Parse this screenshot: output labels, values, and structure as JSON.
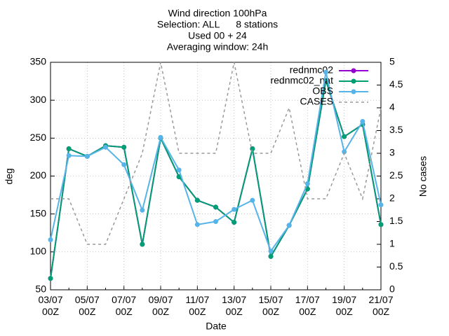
{
  "chart_data": {
    "type": "line",
    "title": [
      "Wind direction 100hPa",
      "Selection: ALL      8 stations",
      "Used 00 + 24",
      "Averaging window: 24h"
    ],
    "xlabel": "Date",
    "ylabel": "deg",
    "y2label": "No cases",
    "categories": [
      "03/07\n00Z",
      null,
      "05/07\n00Z",
      null,
      "07/07\n00Z",
      null,
      "09/07\n00Z",
      null,
      "11/07\n00Z",
      null,
      "13/07\n00Z",
      null,
      "15/07\n00Z",
      null,
      "17/07\n00Z",
      null,
      "19/07\n00Z",
      null,
      "21/07\n00Z"
    ],
    "ylim": [
      50,
      350
    ],
    "yticks": [
      50,
      100,
      150,
      200,
      250,
      300,
      350
    ],
    "y2lim": [
      0,
      5
    ],
    "y2ticks": [
      0,
      0.5,
      1,
      1.5,
      2,
      2.5,
      3,
      3.5,
      4,
      4.5,
      5
    ],
    "grid": true,
    "legend": "upper right",
    "series": [
      {
        "name": "rednmc02",
        "color": "#9400d3",
        "markers": true,
        "values": [
          65,
          236,
          226,
          240,
          238,
          110,
          250,
          199,
          168,
          159,
          139,
          236,
          94,
          135,
          183,
          326,
          252,
          268,
          136
        ]
      },
      {
        "name": "rednmc02_nat",
        "color": "#009e73",
        "markers": true,
        "values": [
          65,
          236,
          226,
          240,
          238,
          110,
          250,
          199,
          168,
          159,
          139,
          236,
          94,
          135,
          183,
          326,
          252,
          268,
          136
        ]
      },
      {
        "name": "OBS",
        "color": "#56b4e9",
        "markers": true,
        "values": [
          116,
          227,
          226,
          238,
          215,
          155,
          251,
          208,
          136,
          140,
          156,
          168,
          101,
          135,
          190,
          337,
          232,
          272,
          162
        ]
      },
      {
        "name": "CASES",
        "color": "#999999",
        "dashed": true,
        "axis": "y2",
        "values": [
          2,
          2,
          1,
          1,
          2,
          3,
          5,
          3,
          3,
          3,
          5,
          3,
          3,
          4,
          2,
          2,
          3,
          2,
          4
        ]
      }
    ]
  }
}
